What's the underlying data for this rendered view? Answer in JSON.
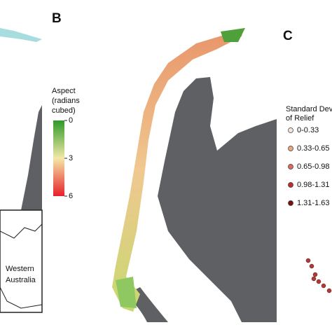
{
  "panels": [
    {
      "label": "B"
    },
    {
      "label": "C"
    }
  ],
  "aspect_legend": {
    "title_lines": [
      "Aspect",
      "(radians",
      "cubed)"
    ],
    "ticks": [
      0,
      3,
      6
    ],
    "colors": [
      "#2e9a2a",
      "#f3e8a6",
      "#e8202a"
    ]
  },
  "relief_legend": {
    "title_lines": [
      "Standard Dev",
      "of Relief"
    ],
    "items": [
      {
        "label": "0-0.33",
        "color": "#f6e4d6"
      },
      {
        "label": "0.33-0.65",
        "color": "#eea57e"
      },
      {
        "label": "0.65-0.98",
        "color": "#e06a5a"
      },
      {
        "label": "0.98-1.31",
        "color": "#c02a2a"
      },
      {
        "label": "1.31-1.63",
        "color": "#7a1010"
      }
    ]
  },
  "inset": {
    "lines": [
      "Western",
      "Australia"
    ]
  }
}
